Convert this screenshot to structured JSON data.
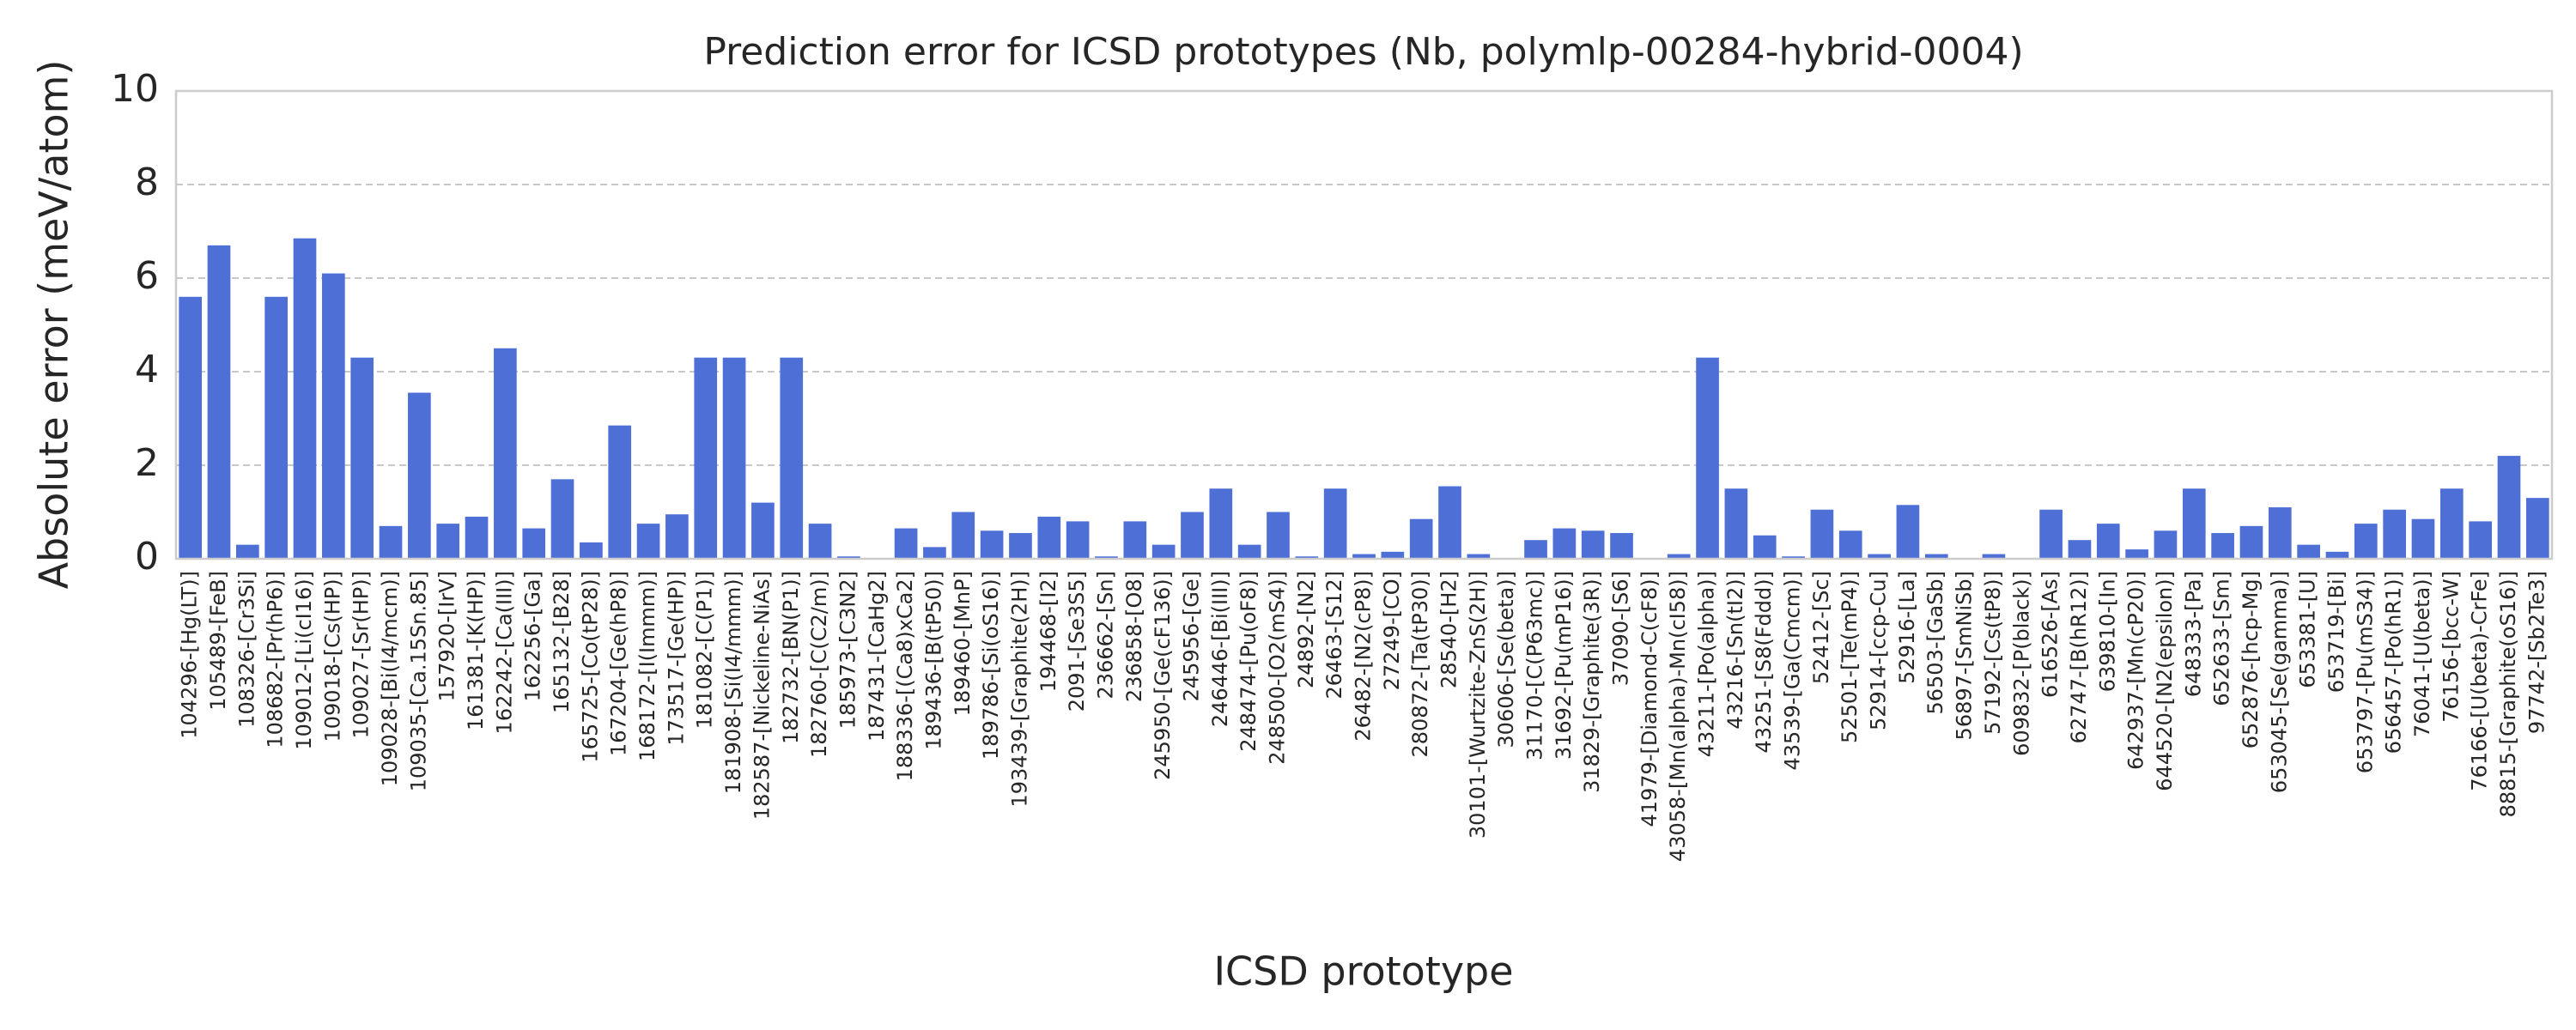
{
  "chart_data": {
    "type": "bar",
    "title": "Prediction error for ICSD prototypes (Nb, polymlp-00284-hybrid-0004)",
    "x_label": "ICSD prototype",
    "y_label": "Absolute error (meV/atom)",
    "categories": [
      "104296-[Hg(LT)]",
      "105489-[FeB]",
      "108326-[Cr3Si]",
      "108682-[Pr(hP6)]",
      "109012-[Li(cI16)]",
      "109018-[Cs(HP)]",
      "109027-[Sr(HP)]",
      "109028-[Bi(I4/mcm)]",
      "109035-[Ca.15Sn.85]",
      "157920-[IrV]",
      "161381-[K(HP)]",
      "162242-[Ca(III)]",
      "162256-[Ga]",
      "165132-[B28]",
      "165725-[Co(tP28)]",
      "167204-[Ge(hP8)]",
      "168172-[I(Immm)]",
      "173517-[Ge(HP)]",
      "181082-[C(P1)]",
      "181908-[Si(I4/mmm)]",
      "182587-[Nickeline-NiAs]",
      "182732-[BN(P1)]",
      "182760-[C(C2/m)]",
      "185973-[C3N2]",
      "187431-[CaHg2]",
      "188336-[(Ca8)xCa2]",
      "189436-[B(tP50)]",
      "189460-[MnP]",
      "189786-[Si(oS16)]",
      "193439-[Graphite(2H)]",
      "194468-[I2]",
      "2091-[Se3S5]",
      "236662-[Sn]",
      "236858-[O8]",
      "245950-[Ge(cF136)]",
      "245956-[Ge]",
      "246446-[Bi(III)]",
      "248474-[Pu(oF8)]",
      "248500-[O2(mS4)]",
      "24892-[N2]",
      "26463-[S12]",
      "26482-[N2(cP8)]",
      "27249-[CO]",
      "280872-[Ta(tP30)]",
      "28540-[H2]",
      "30101-[Wurtzite-ZnS(2H)]",
      "30606-[Se(beta)]",
      "31170-[C(P63mc)]",
      "31692-[Pu(mP16)]",
      "31829-[Graphite(3R)]",
      "37090-[S6]",
      "41979-[Diamond-C(cF8)]",
      "43058-[Mn(alpha)-Mn(cI58)]",
      "43211-[Po(alpha)]",
      "43216-[Sn(tI2)]",
      "43251-[S8(Fddd)]",
      "43539-[Ga(Cmcm)]",
      "52412-[Sc]",
      "52501-[Te(mP4)]",
      "52914-[ccp-Cu]",
      "52916-[La]",
      "56503-[GaSb]",
      "56897-[SmNiSb]",
      "57192-[Cs(tP8)]",
      "609832-[P(black)]",
      "616526-[As]",
      "62747-[B(hR12)]",
      "639810-[In]",
      "642937-[Mn(cP20)]",
      "644520-[N2(epsilon)]",
      "648333-[Pa]",
      "652633-[Sm]",
      "652876-[hcp-Mg]",
      "653045-[Se(gamma)]",
      "653381-[U]",
      "653719-[Bi]",
      "653797-[Pu(mS34)]",
      "656457-[Po(hR1)]",
      "76041-[U(beta)]",
      "76156-[bcc-W]",
      "76166-[U(beta)-CrFe]",
      "88815-[Graphite(oS16)]",
      "97742-[Sb2Te3]"
    ],
    "values": [
      5.6,
      6.7,
      0.3,
      5.6,
      6.85,
      6.1,
      4.3,
      0.7,
      3.55,
      0.75,
      0.9,
      4.5,
      0.65,
      1.7,
      0.35,
      2.85,
      0.75,
      0.95,
      4.3,
      4.3,
      1.2,
      4.3,
      0.75,
      0.05,
      0.0,
      0.65,
      0.25,
      1.0,
      0.6,
      0.55,
      0.9,
      0.8,
      0.05,
      0.8,
      0.3,
      1.0,
      1.5,
      0.3,
      1.0,
      0.05,
      1.5,
      0.1,
      0.15,
      0.85,
      1.55,
      0.1,
      0.0,
      0.4,
      0.65,
      0.6,
      0.55,
      0.0,
      0.1,
      4.3,
      1.5,
      0.5,
      0.05,
      1.05,
      0.6,
      0.1,
      1.15,
      0.1,
      0.0,
      0.1,
      0.0,
      1.05,
      0.4,
      0.75,
      0.2,
      0.6,
      1.5,
      0.55,
      0.7,
      1.1,
      0.3,
      0.15,
      0.75,
      1.05,
      0.85,
      1.5,
      0.8,
      2.2,
      1.3
    ],
    "color": "#4d6fd6",
    "ylim": [
      0,
      10
    ],
    "yticks": [
      0,
      2,
      4,
      6,
      8,
      10
    ],
    "grid": true
  }
}
